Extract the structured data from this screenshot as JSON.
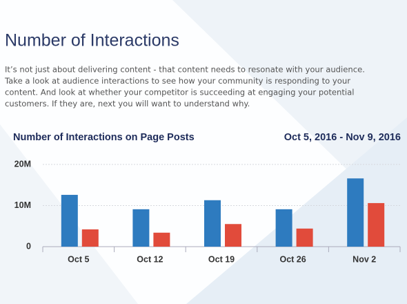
{
  "heading": "Number of Interactions",
  "paragraph_lines": [
    "It’s not just about delivering content - that content needs to resonate with your audience.",
    "Take a look at audience interactions to see how your community is responding to your",
    "content. And look at whether your competitor is succeeding at engaging your potential",
    "customers. If they are, next you will want to understand why."
  ],
  "chart_data": {
    "type": "bar",
    "title": "Number of Interactions on Page Posts",
    "subtitle": "Oct 5, 2016 - Nov 9, 2016",
    "categories": [
      "Oct 5",
      "Oct 12",
      "Oct 19",
      "Oct 26",
      "Nov 2"
    ],
    "series": [
      {
        "color": "#2e7bbf",
        "values": [
          12600000,
          9100000,
          11300000,
          9100000,
          16600000
        ]
      },
      {
        "color": "#e14b3b",
        "values": [
          4200000,
          3400000,
          5500000,
          4400000,
          10600000
        ]
      }
    ],
    "ylim": [
      0,
      20000000
    ],
    "yticks": [
      0,
      {
        "value": 10000000,
        "label": "10M"
      },
      {
        "value": 20000000,
        "label": "20M"
      }
    ],
    "grid": true
  }
}
